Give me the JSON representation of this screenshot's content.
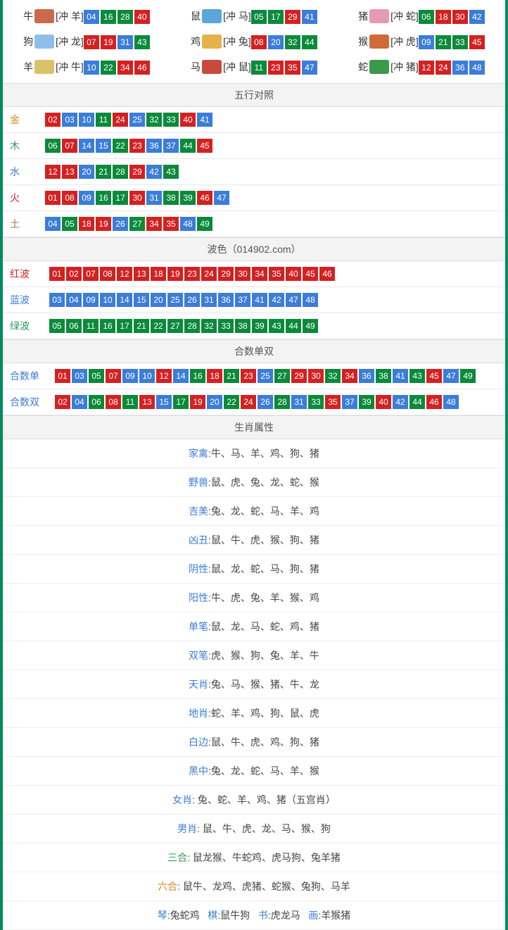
{
  "colors": {
    "border": "#008b5e",
    "blue": "#3b7dd8",
    "green": "#0a8a3a",
    "red": "#d32121",
    "header_bg": "#f3f3f3"
  },
  "zodiac_icon_colors": {
    "牛": "#c96a4a",
    "鼠": "#5aa7d8",
    "猪": "#e89ab4",
    "狗": "#8fbfe8",
    "鸡": "#e3b24a",
    "猴": "#d16a3a",
    "羊": "#d9c36a",
    "马": "#c94a3a",
    "蛇": "#3a9a4a"
  },
  "zodiac_grid": [
    {
      "name": "牛",
      "clash": "[冲 羊]",
      "nums": [
        {
          "v": "04",
          "c": "blue"
        },
        {
          "v": "16",
          "c": "green"
        },
        {
          "v": "28",
          "c": "green"
        },
        {
          "v": "40",
          "c": "red"
        }
      ]
    },
    {
      "name": "鼠",
      "clash": "[冲 马]",
      "nums": [
        {
          "v": "05",
          "c": "green"
        },
        {
          "v": "17",
          "c": "green"
        },
        {
          "v": "29",
          "c": "red"
        },
        {
          "v": "41",
          "c": "blue"
        }
      ]
    },
    {
      "name": "猪",
      "clash": "[冲 蛇]",
      "nums": [
        {
          "v": "06",
          "c": "green"
        },
        {
          "v": "18",
          "c": "red"
        },
        {
          "v": "30",
          "c": "red"
        },
        {
          "v": "42",
          "c": "blue"
        }
      ]
    },
    {
      "name": "狗",
      "clash": "[冲 龙]",
      "nums": [
        {
          "v": "07",
          "c": "red"
        },
        {
          "v": "19",
          "c": "red"
        },
        {
          "v": "31",
          "c": "blue"
        },
        {
          "v": "43",
          "c": "green"
        }
      ]
    },
    {
      "name": "鸡",
      "clash": "[冲 兔]",
      "nums": [
        {
          "v": "08",
          "c": "red"
        },
        {
          "v": "20",
          "c": "blue"
        },
        {
          "v": "32",
          "c": "green"
        },
        {
          "v": "44",
          "c": "green"
        }
      ]
    },
    {
      "name": "猴",
      "clash": "[冲 虎]",
      "nums": [
        {
          "v": "09",
          "c": "blue"
        },
        {
          "v": "21",
          "c": "green"
        },
        {
          "v": "33",
          "c": "green"
        },
        {
          "v": "45",
          "c": "red"
        }
      ]
    },
    {
      "name": "羊",
      "clash": "[冲 牛]",
      "nums": [
        {
          "v": "10",
          "c": "blue"
        },
        {
          "v": "22",
          "c": "green"
        },
        {
          "v": "34",
          "c": "red"
        },
        {
          "v": "46",
          "c": "red"
        }
      ]
    },
    {
      "name": "马",
      "clash": "[冲 鼠]",
      "nums": [
        {
          "v": "11",
          "c": "green"
        },
        {
          "v": "23",
          "c": "red"
        },
        {
          "v": "35",
          "c": "red"
        },
        {
          "v": "47",
          "c": "blue"
        }
      ]
    },
    {
      "name": "蛇",
      "clash": "[冲 猪]",
      "nums": [
        {
          "v": "12",
          "c": "red"
        },
        {
          "v": "24",
          "c": "red"
        },
        {
          "v": "36",
          "c": "blue"
        },
        {
          "v": "48",
          "c": "blue"
        }
      ]
    }
  ],
  "sections": {
    "wuxing": {
      "title": "五行对照",
      "rows": [
        {
          "key": "金",
          "key_color": "#d08a20",
          "nums": [
            {
              "v": "02",
              "c": "red"
            },
            {
              "v": "03",
              "c": "blue"
            },
            {
              "v": "10",
              "c": "blue"
            },
            {
              "v": "11",
              "c": "green"
            },
            {
              "v": "24",
              "c": "red"
            },
            {
              "v": "25",
              "c": "blue"
            },
            {
              "v": "32",
              "c": "green"
            },
            {
              "v": "33",
              "c": "green"
            },
            {
              "v": "40",
              "c": "red"
            },
            {
              "v": "41",
              "c": "blue"
            }
          ]
        },
        {
          "key": "木",
          "key_color": "#2a9a5a",
          "nums": [
            {
              "v": "06",
              "c": "green"
            },
            {
              "v": "07",
              "c": "red"
            },
            {
              "v": "14",
              "c": "blue"
            },
            {
              "v": "15",
              "c": "blue"
            },
            {
              "v": "22",
              "c": "green"
            },
            {
              "v": "23",
              "c": "red"
            },
            {
              "v": "36",
              "c": "blue"
            },
            {
              "v": "37",
              "c": "blue"
            },
            {
              "v": "44",
              "c": "green"
            },
            {
              "v": "45",
              "c": "red"
            }
          ]
        },
        {
          "key": "水",
          "key_color": "#3b7dd8",
          "nums": [
            {
              "v": "12",
              "c": "red"
            },
            {
              "v": "13",
              "c": "red"
            },
            {
              "v": "20",
              "c": "blue"
            },
            {
              "v": "21",
              "c": "green"
            },
            {
              "v": "28",
              "c": "green"
            },
            {
              "v": "29",
              "c": "red"
            },
            {
              "v": "42",
              "c": "blue"
            },
            {
              "v": "43",
              "c": "green"
            }
          ]
        },
        {
          "key": "火",
          "key_color": "#d32121",
          "nums": [
            {
              "v": "01",
              "c": "red"
            },
            {
              "v": "08",
              "c": "red"
            },
            {
              "v": "09",
              "c": "blue"
            },
            {
              "v": "16",
              "c": "green"
            },
            {
              "v": "17",
              "c": "green"
            },
            {
              "v": "30",
              "c": "red"
            },
            {
              "v": "31",
              "c": "blue"
            },
            {
              "v": "38",
              "c": "green"
            },
            {
              "v": "39",
              "c": "green"
            },
            {
              "v": "46",
              "c": "red"
            },
            {
              "v": "47",
              "c": "blue"
            }
          ]
        },
        {
          "key": "土",
          "key_color": "#a07a3a",
          "nums": [
            {
              "v": "04",
              "c": "blue"
            },
            {
              "v": "05",
              "c": "green"
            },
            {
              "v": "18",
              "c": "red"
            },
            {
              "v": "19",
              "c": "red"
            },
            {
              "v": "26",
              "c": "blue"
            },
            {
              "v": "27",
              "c": "green"
            },
            {
              "v": "34",
              "c": "red"
            },
            {
              "v": "35",
              "c": "red"
            },
            {
              "v": "48",
              "c": "blue"
            },
            {
              "v": "49",
              "c": "green"
            }
          ]
        }
      ]
    },
    "bose": {
      "title": "波色（014902.com）",
      "rows": [
        {
          "key": "红波",
          "key_color": "#d32121",
          "nums": [
            {
              "v": "01",
              "c": "red"
            },
            {
              "v": "02",
              "c": "red"
            },
            {
              "v": "07",
              "c": "red"
            },
            {
              "v": "08",
              "c": "red"
            },
            {
              "v": "12",
              "c": "red"
            },
            {
              "v": "13",
              "c": "red"
            },
            {
              "v": "18",
              "c": "red"
            },
            {
              "v": "19",
              "c": "red"
            },
            {
              "v": "23",
              "c": "red"
            },
            {
              "v": "24",
              "c": "red"
            },
            {
              "v": "29",
              "c": "red"
            },
            {
              "v": "30",
              "c": "red"
            },
            {
              "v": "34",
              "c": "red"
            },
            {
              "v": "35",
              "c": "red"
            },
            {
              "v": "40",
              "c": "red"
            },
            {
              "v": "45",
              "c": "red"
            },
            {
              "v": "46",
              "c": "red"
            }
          ]
        },
        {
          "key": "蓝波",
          "key_color": "#3b7dd8",
          "nums": [
            {
              "v": "03",
              "c": "blue"
            },
            {
              "v": "04",
              "c": "blue"
            },
            {
              "v": "09",
              "c": "blue"
            },
            {
              "v": "10",
              "c": "blue"
            },
            {
              "v": "14",
              "c": "blue"
            },
            {
              "v": "15",
              "c": "blue"
            },
            {
              "v": "20",
              "c": "blue"
            },
            {
              "v": "25",
              "c": "blue"
            },
            {
              "v": "26",
              "c": "blue"
            },
            {
              "v": "31",
              "c": "blue"
            },
            {
              "v": "36",
              "c": "blue"
            },
            {
              "v": "37",
              "c": "blue"
            },
            {
              "v": "41",
              "c": "blue"
            },
            {
              "v": "42",
              "c": "blue"
            },
            {
              "v": "47",
              "c": "blue"
            },
            {
              "v": "48",
              "c": "blue"
            }
          ]
        },
        {
          "key": "绿波",
          "key_color": "#2a9a5a",
          "nums": [
            {
              "v": "05",
              "c": "green"
            },
            {
              "v": "06",
              "c": "green"
            },
            {
              "v": "11",
              "c": "green"
            },
            {
              "v": "16",
              "c": "green"
            },
            {
              "v": "17",
              "c": "green"
            },
            {
              "v": "21",
              "c": "green"
            },
            {
              "v": "22",
              "c": "green"
            },
            {
              "v": "27",
              "c": "green"
            },
            {
              "v": "28",
              "c": "green"
            },
            {
              "v": "32",
              "c": "green"
            },
            {
              "v": "33",
              "c": "green"
            },
            {
              "v": "38",
              "c": "green"
            },
            {
              "v": "39",
              "c": "green"
            },
            {
              "v": "43",
              "c": "green"
            },
            {
              "v": "44",
              "c": "green"
            },
            {
              "v": "49",
              "c": "green"
            }
          ]
        }
      ]
    },
    "heshu": {
      "title": "合数单双",
      "rows": [
        {
          "key": "合数单",
          "key_color": "#3b7dd8",
          "nums": [
            {
              "v": "01",
              "c": "red"
            },
            {
              "v": "03",
              "c": "blue"
            },
            {
              "v": "05",
              "c": "green"
            },
            {
              "v": "07",
              "c": "red"
            },
            {
              "v": "09",
              "c": "blue"
            },
            {
              "v": "10",
              "c": "blue"
            },
            {
              "v": "12",
              "c": "red"
            },
            {
              "v": "14",
              "c": "blue"
            },
            {
              "v": "16",
              "c": "green"
            },
            {
              "v": "18",
              "c": "red"
            },
            {
              "v": "21",
              "c": "green"
            },
            {
              "v": "23",
              "c": "red"
            },
            {
              "v": "25",
              "c": "blue"
            },
            {
              "v": "27",
              "c": "green"
            },
            {
              "v": "29",
              "c": "red"
            },
            {
              "v": "30",
              "c": "red"
            },
            {
              "v": "32",
              "c": "green"
            },
            {
              "v": "34",
              "c": "red"
            },
            {
              "v": "36",
              "c": "blue"
            },
            {
              "v": "38",
              "c": "green"
            },
            {
              "v": "41",
              "c": "blue"
            },
            {
              "v": "43",
              "c": "green"
            },
            {
              "v": "45",
              "c": "red"
            },
            {
              "v": "47",
              "c": "blue"
            },
            {
              "v": "49",
              "c": "green"
            }
          ]
        },
        {
          "key": "合数双",
          "key_color": "#3b7dd8",
          "nums": [
            {
              "v": "02",
              "c": "red"
            },
            {
              "v": "04",
              "c": "blue"
            },
            {
              "v": "06",
              "c": "green"
            },
            {
              "v": "08",
              "c": "red"
            },
            {
              "v": "11",
              "c": "green"
            },
            {
              "v": "13",
              "c": "red"
            },
            {
              "v": "15",
              "c": "blue"
            },
            {
              "v": "17",
              "c": "green"
            },
            {
              "v": "19",
              "c": "red"
            },
            {
              "v": "20",
              "c": "blue"
            },
            {
              "v": "22",
              "c": "green"
            },
            {
              "v": "24",
              "c": "red"
            },
            {
              "v": "26",
              "c": "blue"
            },
            {
              "v": "28",
              "c": "green"
            },
            {
              "v": "31",
              "c": "blue"
            },
            {
              "v": "33",
              "c": "green"
            },
            {
              "v": "35",
              "c": "red"
            },
            {
              "v": "37",
              "c": "blue"
            },
            {
              "v": "39",
              "c": "green"
            },
            {
              "v": "40",
              "c": "red"
            },
            {
              "v": "42",
              "c": "blue"
            },
            {
              "v": "44",
              "c": "green"
            },
            {
              "v": "46",
              "c": "red"
            },
            {
              "v": "48",
              "c": "blue"
            }
          ]
        }
      ]
    },
    "shengxiao": {
      "title": "生肖属性",
      "rows": [
        {
          "label": "家禽",
          "label_color": "#3b7dd8",
          "sep": ":",
          "value": "牛、马、羊、鸡、狗、猪"
        },
        {
          "label": "野兽",
          "label_color": "#3b7dd8",
          "sep": ":",
          "value": "鼠、虎、兔、龙、蛇、猴"
        },
        {
          "label": "吉美",
          "label_color": "#3b7dd8",
          "sep": ":",
          "value": "兔、龙、蛇、马、羊、鸡"
        },
        {
          "label": "凶丑",
          "label_color": "#3b7dd8",
          "sep": ":",
          "value": "鼠、牛、虎、猴、狗、猪"
        },
        {
          "label": "阴性",
          "label_color": "#3b7dd8",
          "sep": ":",
          "value": "鼠、龙、蛇、马、狗、猪"
        },
        {
          "label": "阳性",
          "label_color": "#3b7dd8",
          "sep": ":",
          "value": "牛、虎、兔、羊、猴、鸡"
        },
        {
          "label": "单笔",
          "label_color": "#3b7dd8",
          "sep": ":",
          "value": "鼠、龙、马、蛇、鸡、猪"
        },
        {
          "label": "双笔",
          "label_color": "#3b7dd8",
          "sep": ":",
          "value": "虎、猴、狗、兔、羊、牛"
        },
        {
          "label": "天肖",
          "label_color": "#3b7dd8",
          "sep": ":",
          "value": "兔、马、猴、猪、牛、龙"
        },
        {
          "label": "地肖",
          "label_color": "#3b7dd8",
          "sep": ":",
          "value": "蛇、羊、鸡、狗、鼠、虎"
        },
        {
          "label": "白边",
          "label_color": "#3b7dd8",
          "sep": ":",
          "value": "鼠、牛、虎、鸡、狗、猪"
        },
        {
          "label": "黑中",
          "label_color": "#3b7dd8",
          "sep": ":",
          "value": "兔、龙、蛇、马、羊、猴"
        },
        {
          "label": "女肖",
          "label_color": "#3b7dd8",
          "sep": ": ",
          "value": "兔、蛇、羊、鸡、猪（五宫肖）"
        },
        {
          "label": "男肖",
          "label_color": "#3b7dd8",
          "sep": ": ",
          "value": "鼠、牛、虎、龙、马、猴、狗"
        },
        {
          "label": "三合",
          "label_color": "#2a9a5a",
          "sep": ": ",
          "value": "鼠龙猴、牛蛇鸡、虎马狗、兔羊猪"
        },
        {
          "label": "六合",
          "label_color": "#d08a20",
          "sep": ": ",
          "value": "鼠牛、龙鸡、虎猪、蛇猴、兔狗、马羊"
        }
      ],
      "four_arts": [
        {
          "label": "琴",
          "value": "兔蛇鸡"
        },
        {
          "label": "棋",
          "value": "鼠牛狗"
        },
        {
          "label": "书",
          "value": "虎龙马"
        },
        {
          "label": "画",
          "value": "羊猴猪"
        }
      ]
    }
  }
}
